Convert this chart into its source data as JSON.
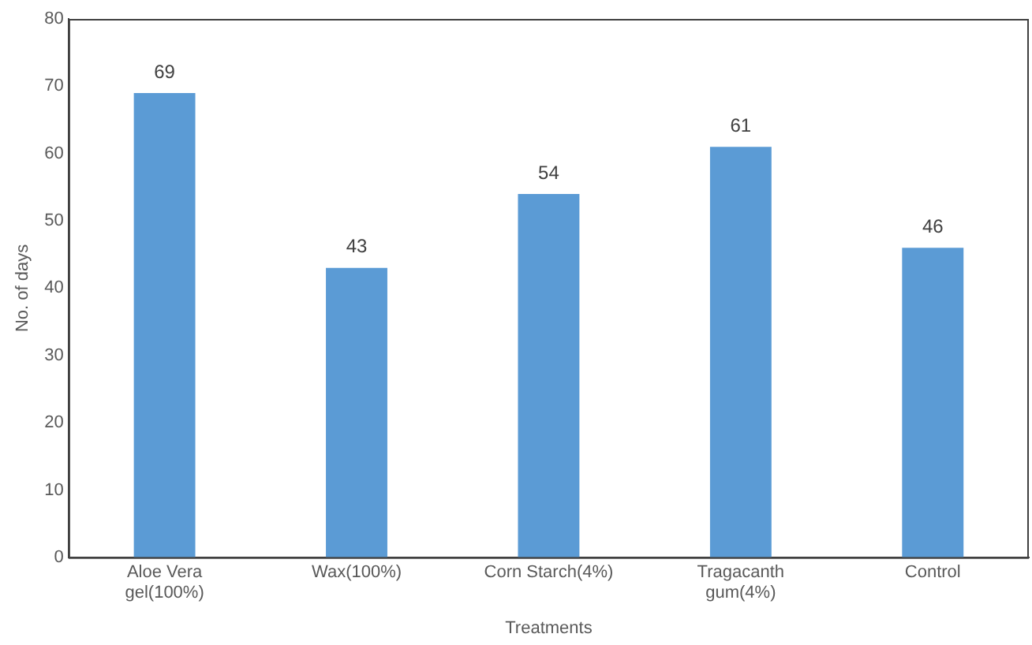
{
  "chart_data": {
    "type": "bar",
    "xlabel": "Treatments",
    "ylabel": "No. of days",
    "categories": [
      "Aloe Vera gel(100%)",
      "Wax(100%)",
      "Corn Starch(4%)",
      "Tragacanth gum(4%)",
      "Control"
    ],
    "values": [
      69,
      43,
      54,
      61,
      46
    ],
    "color": "#5b9bd5",
    "ylim": [
      0,
      80
    ],
    "yticks": [
      0,
      10,
      20,
      30,
      40,
      50,
      60,
      70,
      80
    ],
    "grid": false,
    "legend": false,
    "data_labels": true
  }
}
